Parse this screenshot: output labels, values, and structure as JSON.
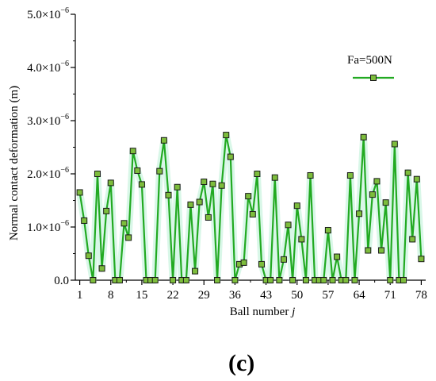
{
  "chart_data": {
    "type": "line",
    "xlabel": "Ball number ",
    "xlabel_var": "j",
    "ylabel": "Normal contact deformation (m)",
    "xlim": [
      0,
      79
    ],
    "ylim": [
      0,
      5e-06
    ],
    "x_ticks": [
      1,
      8,
      15,
      22,
      29,
      36,
      43,
      50,
      57,
      64,
      71,
      78
    ],
    "y_ticks": [
      {
        "value": 0,
        "label": "0.0"
      },
      {
        "value": 1e-06,
        "label": "1.0×10",
        "exp": "−6"
      },
      {
        "value": 2e-06,
        "label": "2.0×10",
        "exp": "−6"
      },
      {
        "value": 3e-06,
        "label": "3.0×10",
        "exp": "−6"
      },
      {
        "value": 4e-06,
        "label": "4.0×10",
        "exp": "−6"
      },
      {
        "value": 5e-06,
        "label": "5.0×10",
        "exp": "−6"
      }
    ],
    "grid": false,
    "legend_position": "top-right",
    "panel_label": "(c)",
    "series": [
      {
        "name": "Fa=500N",
        "color": "#22aa22",
        "marker_fill": "#7dbd3c",
        "x": [
          1,
          2,
          3,
          4,
          5,
          6,
          7,
          8,
          9,
          10,
          11,
          12,
          13,
          14,
          15,
          16,
          17,
          18,
          19,
          20,
          21,
          22,
          23,
          24,
          25,
          26,
          27,
          28,
          29,
          30,
          31,
          32,
          33,
          34,
          35,
          36,
          37,
          38,
          39,
          40,
          41,
          42,
          43,
          44,
          45,
          46,
          47,
          48,
          49,
          50,
          51,
          52,
          53,
          54,
          55,
          56,
          57,
          58,
          59,
          60,
          61,
          62,
          63,
          64,
          65,
          66,
          67,
          68,
          69,
          70,
          71,
          72,
          73,
          74,
          75,
          76,
          77,
          78
        ],
        "values": [
          1.65e-06,
          1.12e-06,
          4.6e-07,
          0,
          2e-06,
          2.2e-07,
          1.3e-06,
          1.83e-06,
          0,
          0,
          1.07e-06,
          8e-07,
          2.43e-06,
          2.06e-06,
          1.8e-06,
          0,
          0,
          0,
          2.05e-06,
          2.63e-06,
          1.6e-06,
          0,
          1.75e-06,
          0,
          0,
          1.42e-06,
          1.7e-07,
          1.47e-06,
          1.85e-06,
          1.18e-06,
          1.81e-06,
          0,
          1.78e-06,
          2.73e-06,
          2.32e-06,
          0,
          3e-07,
          3.3e-07,
          1.58e-06,
          1.24e-06,
          2e-06,
          3e-07,
          0,
          0,
          1.93e-06,
          0,
          3.9e-07,
          1.04e-06,
          0,
          1.4e-06,
          7.7e-07,
          0,
          1.97e-06,
          0,
          0,
          0,
          9.4e-07,
          0,
          4.4e-07,
          0,
          0,
          1.97e-06,
          0,
          1.25e-06,
          2.69e-06,
          5.6e-07,
          1.61e-06,
          1.86e-06,
          5.6e-07,
          1.46e-06,
          0,
          2.56e-06,
          0,
          0,
          2.02e-06,
          7.7e-07,
          1.9e-06,
          4e-07
        ]
      }
    ]
  }
}
